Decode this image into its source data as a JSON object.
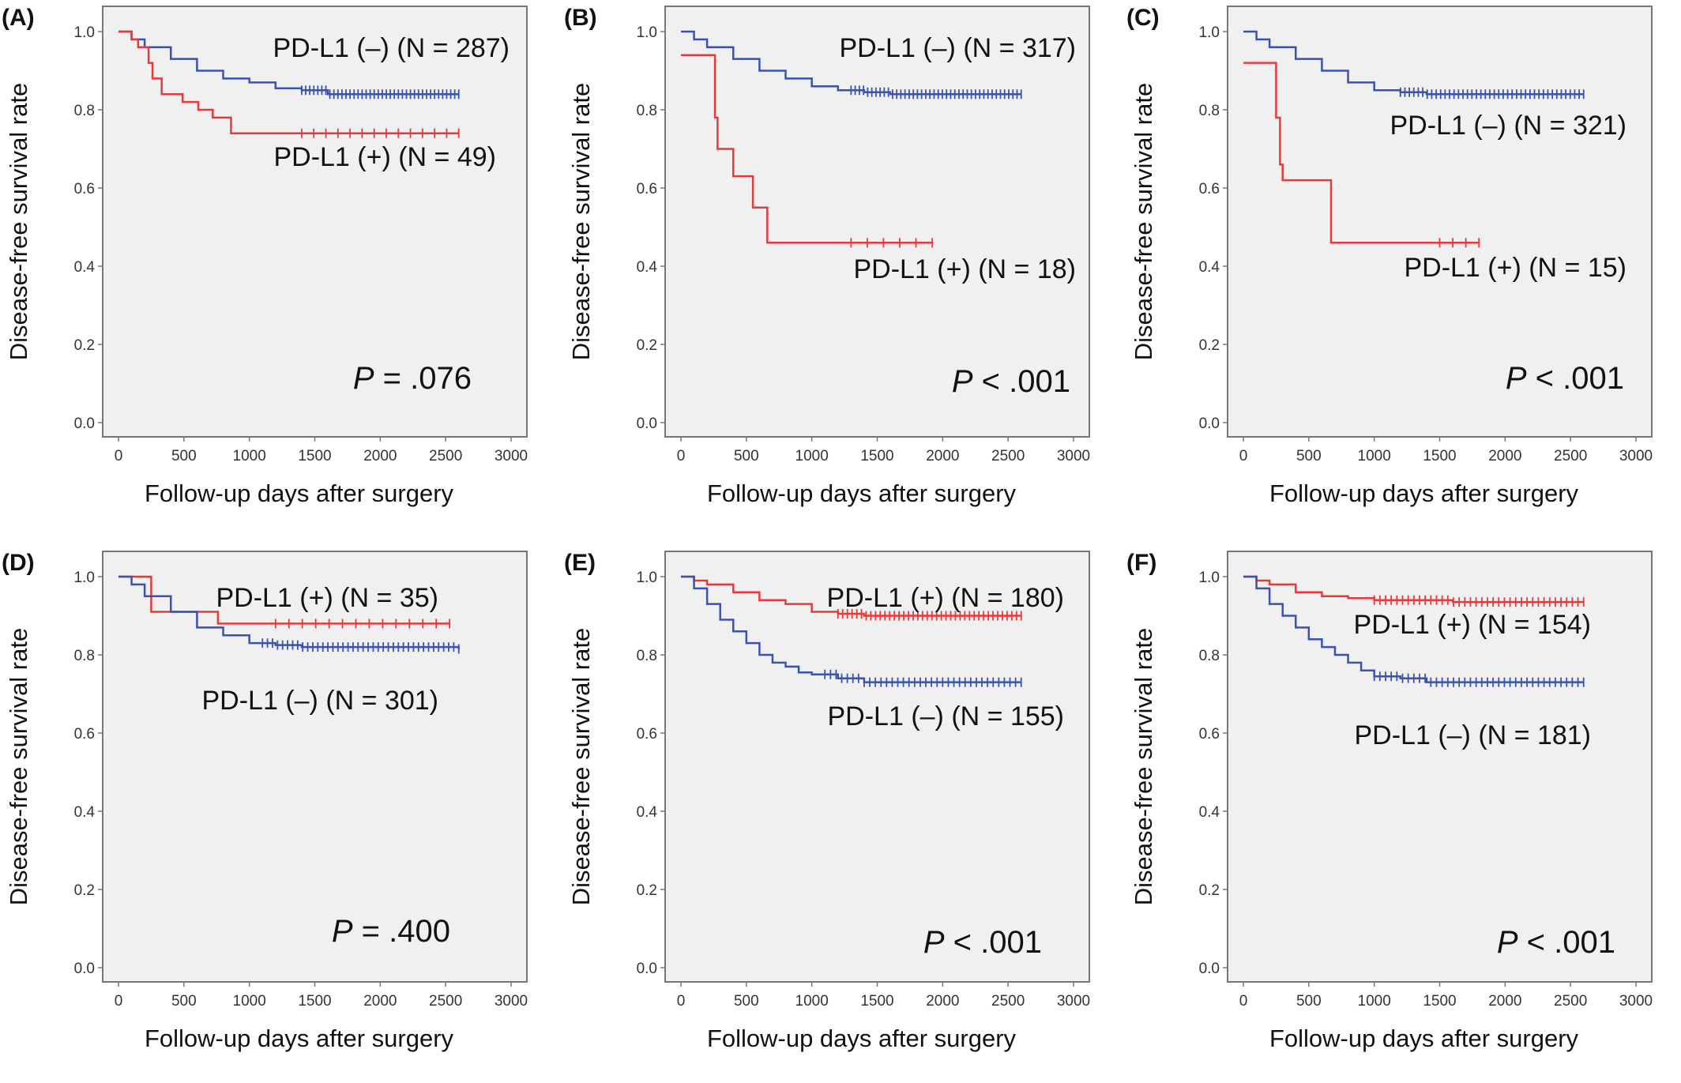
{
  "colors": {
    "positive": "#e8393a",
    "negative": "#3a52b4",
    "plot_bg": "#f0f0f0"
  },
  "chart_data": [
    {
      "panel": "(A)",
      "type": "line",
      "xlabel": "Follow-up days after surgery",
      "ylabel": "Disease-free survival  rate",
      "xlim": [
        0,
        3000
      ],
      "ylim": [
        0,
        1
      ],
      "xticks": [
        "0",
        "500",
        "1000",
        "1500",
        "2000",
        "2500",
        "3000"
      ],
      "yticks": [
        "0.0",
        "0.2",
        "0.4",
        "0.6",
        "0.8",
        "1.0"
      ],
      "pvalue": {
        "p": "P",
        "rest": " = .076"
      },
      "series": [
        {
          "name": "PD-L1 (–) (N = 287)",
          "color": "negative",
          "points": [
            [
              0,
              1.0
            ],
            [
              100,
              0.98
            ],
            [
              200,
              0.96
            ],
            [
              400,
              0.93
            ],
            [
              600,
              0.9
            ],
            [
              800,
              0.88
            ],
            [
              1000,
              0.87
            ],
            [
              1200,
              0.855
            ],
            [
              1400,
              0.85
            ],
            [
              1600,
              0.84
            ],
            [
              1900,
              0.84
            ],
            [
              2600,
              0.84
            ]
          ],
          "censor_from": 1400,
          "censor_to": 2600,
          "censor_count": 40
        },
        {
          "name": "PD-L1 (+) (N = 49)",
          "color": "positive",
          "points": [
            [
              0,
              1.0
            ],
            [
              100,
              0.98
            ],
            [
              150,
              0.96
            ],
            [
              230,
              0.92
            ],
            [
              260,
              0.88
            ],
            [
              330,
              0.84
            ],
            [
              490,
              0.82
            ],
            [
              610,
              0.8
            ],
            [
              720,
              0.78
            ],
            [
              860,
              0.74
            ],
            [
              2600,
              0.74
            ]
          ],
          "censor_from": 1400,
          "censor_to": 2600,
          "censor_count": 14
        }
      ]
    },
    {
      "panel": "(B)",
      "type": "line",
      "xlabel": "Follow-up days after surgery",
      "ylabel": "Disease-free survival  rate",
      "xlim": [
        0,
        3000
      ],
      "ylim": [
        0,
        1
      ],
      "xticks": [
        "0",
        "500",
        "1000",
        "1500",
        "2000",
        "2500",
        "3000"
      ],
      "yticks": [
        "0.0",
        "0.2",
        "0.4",
        "0.6",
        "0.8",
        "1.0"
      ],
      "pvalue": {
        "p": "P",
        "rest": " < .001"
      },
      "series": [
        {
          "name": "PD-L1 (–) (N = 317)",
          "color": "negative",
          "points": [
            [
              0,
              1.0
            ],
            [
              100,
              0.98
            ],
            [
              200,
              0.96
            ],
            [
              400,
              0.93
            ],
            [
              600,
              0.9
            ],
            [
              800,
              0.88
            ],
            [
              1000,
              0.86
            ],
            [
              1200,
              0.85
            ],
            [
              1400,
              0.845
            ],
            [
              1600,
              0.84
            ],
            [
              2600,
              0.84
            ]
          ],
          "censor_from": 1300,
          "censor_to": 2600,
          "censor_count": 42
        },
        {
          "name": "PD-L1 (+) (N = 18)",
          "color": "positive",
          "points": [
            [
              0,
              0.94
            ],
            [
              230,
              0.94
            ],
            [
              260,
              0.78
            ],
            [
              280,
              0.7
            ],
            [
              400,
              0.63
            ],
            [
              550,
              0.55
            ],
            [
              660,
              0.46
            ],
            [
              1920,
              0.46
            ]
          ],
          "censor_from": 1300,
          "censor_to": 1920,
          "censor_count": 6
        }
      ]
    },
    {
      "panel": "(C)",
      "type": "line",
      "xlabel": "Follow-up days after surgery",
      "ylabel": "Disease-free survival  rate",
      "xlim": [
        0,
        3000
      ],
      "ylim": [
        0,
        1
      ],
      "xticks": [
        "0",
        "500",
        "1000",
        "1500",
        "2000",
        "2500",
        "3000"
      ],
      "yticks": [
        "0.0",
        "0.2",
        "0.4",
        "0.6",
        "0.8",
        "1.0"
      ],
      "pvalue": {
        "p": "P",
        "rest": " < .001"
      },
      "series": [
        {
          "name": "PD-L1 (–) (N = 321)",
          "color": "negative",
          "points": [
            [
              0,
              1.0
            ],
            [
              100,
              0.98
            ],
            [
              200,
              0.96
            ],
            [
              400,
              0.93
            ],
            [
              600,
              0.9
            ],
            [
              800,
              0.87
            ],
            [
              1000,
              0.85
            ],
            [
              1200,
              0.845
            ],
            [
              1400,
              0.84
            ],
            [
              2600,
              0.84
            ]
          ],
          "censor_from": 1200,
          "censor_to": 2600,
          "censor_count": 42
        },
        {
          "name": "PD-L1 (+) (N = 15)",
          "color": "positive",
          "points": [
            [
              0,
              0.92
            ],
            [
              230,
              0.92
            ],
            [
              250,
              0.78
            ],
            [
              280,
              0.66
            ],
            [
              300,
              0.62
            ],
            [
              660,
              0.62
            ],
            [
              670,
              0.46
            ],
            [
              1800,
              0.46
            ]
          ],
          "censor_from": 1500,
          "censor_to": 1800,
          "censor_count": 4
        }
      ]
    },
    {
      "panel": "(D)",
      "type": "line",
      "xlabel": "Follow-up days after surgery",
      "ylabel": "Disease-free survival  rate",
      "xlim": [
        0,
        3000
      ],
      "ylim": [
        0,
        1
      ],
      "xticks": [
        "0",
        "500",
        "1000",
        "1500",
        "2000",
        "2500",
        "3000"
      ],
      "yticks": [
        "0.0",
        "0.2",
        "0.4",
        "0.6",
        "0.8",
        "1.0"
      ],
      "pvalue": {
        "p": "P",
        "rest": " = .400"
      },
      "series": [
        {
          "name": "PD-L1 (+) (N = 35)",
          "color": "positive",
          "points": [
            [
              0,
              1.0
            ],
            [
              240,
              1.0
            ],
            [
              250,
              0.91
            ],
            [
              750,
              0.91
            ],
            [
              760,
              0.88
            ],
            [
              2530,
              0.88
            ]
          ],
          "censor_from": 1200,
          "censor_to": 2530,
          "censor_count": 14
        },
        {
          "name": "PD-L1 (–) (N = 301)",
          "color": "negative",
          "points": [
            [
              0,
              1.0
            ],
            [
              100,
              0.98
            ],
            [
              200,
              0.95
            ],
            [
              400,
              0.91
            ],
            [
              600,
              0.87
            ],
            [
              800,
              0.85
            ],
            [
              1000,
              0.83
            ],
            [
              1200,
              0.825
            ],
            [
              1400,
              0.82
            ],
            [
              2600,
              0.815
            ]
          ],
          "censor_from": 1100,
          "censor_to": 2600,
          "censor_count": 40
        }
      ]
    },
    {
      "panel": "(E)",
      "type": "line",
      "xlabel": "Follow-up days after surgery",
      "ylabel": "Disease-free survival  rate",
      "xlim": [
        0,
        3000
      ],
      "ylim": [
        0,
        1
      ],
      "xticks": [
        "0",
        "500",
        "1000",
        "1500",
        "2000",
        "2500",
        "3000"
      ],
      "yticks": [
        "0.0",
        "0.2",
        "0.4",
        "0.6",
        "0.8",
        "1.0"
      ],
      "pvalue": {
        "p": "P",
        "rest": " < .001"
      },
      "series": [
        {
          "name": "PD-L1 (+) (N = 180)",
          "color": "positive",
          "points": [
            [
              0,
              1.0
            ],
            [
              100,
              0.99
            ],
            [
              200,
              0.98
            ],
            [
              400,
              0.96
            ],
            [
              600,
              0.94
            ],
            [
              800,
              0.93
            ],
            [
              1000,
              0.91
            ],
            [
              1200,
              0.905
            ],
            [
              1400,
              0.9
            ],
            [
              2600,
              0.9
            ]
          ],
          "censor_from": 1200,
          "censor_to": 2600,
          "censor_count": 40
        },
        {
          "name": "PD-L1 (–) (N = 155)",
          "color": "negative",
          "points": [
            [
              0,
              1.0
            ],
            [
              100,
              0.97
            ],
            [
              200,
              0.93
            ],
            [
              300,
              0.89
            ],
            [
              400,
              0.86
            ],
            [
              500,
              0.83
            ],
            [
              600,
              0.8
            ],
            [
              700,
              0.78
            ],
            [
              800,
              0.77
            ],
            [
              900,
              0.755
            ],
            [
              1000,
              0.75
            ],
            [
              1200,
              0.74
            ],
            [
              1400,
              0.73
            ],
            [
              2600,
              0.73
            ]
          ],
          "censor_from": 1100,
          "censor_to": 2600,
          "censor_count": 36
        }
      ]
    },
    {
      "panel": "(F)",
      "type": "line",
      "xlabel": "Follow-up days after surgery",
      "ylabel": "Disease-free survival  rate",
      "xlim": [
        0,
        3000
      ],
      "ylim": [
        0,
        1
      ],
      "xticks": [
        "0",
        "500",
        "1000",
        "1500",
        "2000",
        "2500",
        "3000"
      ],
      "yticks": [
        "0.0",
        "0.2",
        "0.4",
        "0.6",
        "0.8",
        "1.0"
      ],
      "pvalue": {
        "p": "P",
        "rest": " < .001"
      },
      "series": [
        {
          "name": "PD-L1 (+) (N = 154)",
          "color": "positive",
          "points": [
            [
              0,
              1.0
            ],
            [
              100,
              0.99
            ],
            [
              200,
              0.98
            ],
            [
              400,
              0.96
            ],
            [
              600,
              0.95
            ],
            [
              800,
              0.945
            ],
            [
              1000,
              0.94
            ],
            [
              1400,
              0.94
            ],
            [
              1600,
              0.935
            ],
            [
              2600,
              0.935
            ]
          ],
          "censor_from": 1000,
          "censor_to": 2600,
          "censor_count": 38
        },
        {
          "name": "PD-L1 (–) (N = 181)",
          "color": "negative",
          "points": [
            [
              0,
              1.0
            ],
            [
              100,
              0.97
            ],
            [
              200,
              0.93
            ],
            [
              300,
              0.9
            ],
            [
              400,
              0.87
            ],
            [
              500,
              0.84
            ],
            [
              600,
              0.82
            ],
            [
              700,
              0.8
            ],
            [
              800,
              0.78
            ],
            [
              900,
              0.76
            ],
            [
              1000,
              0.745
            ],
            [
              1200,
              0.74
            ],
            [
              1400,
              0.73
            ],
            [
              2600,
              0.73
            ]
          ],
          "censor_from": 1000,
          "censor_to": 2600,
          "censor_count": 38
        }
      ]
    }
  ]
}
